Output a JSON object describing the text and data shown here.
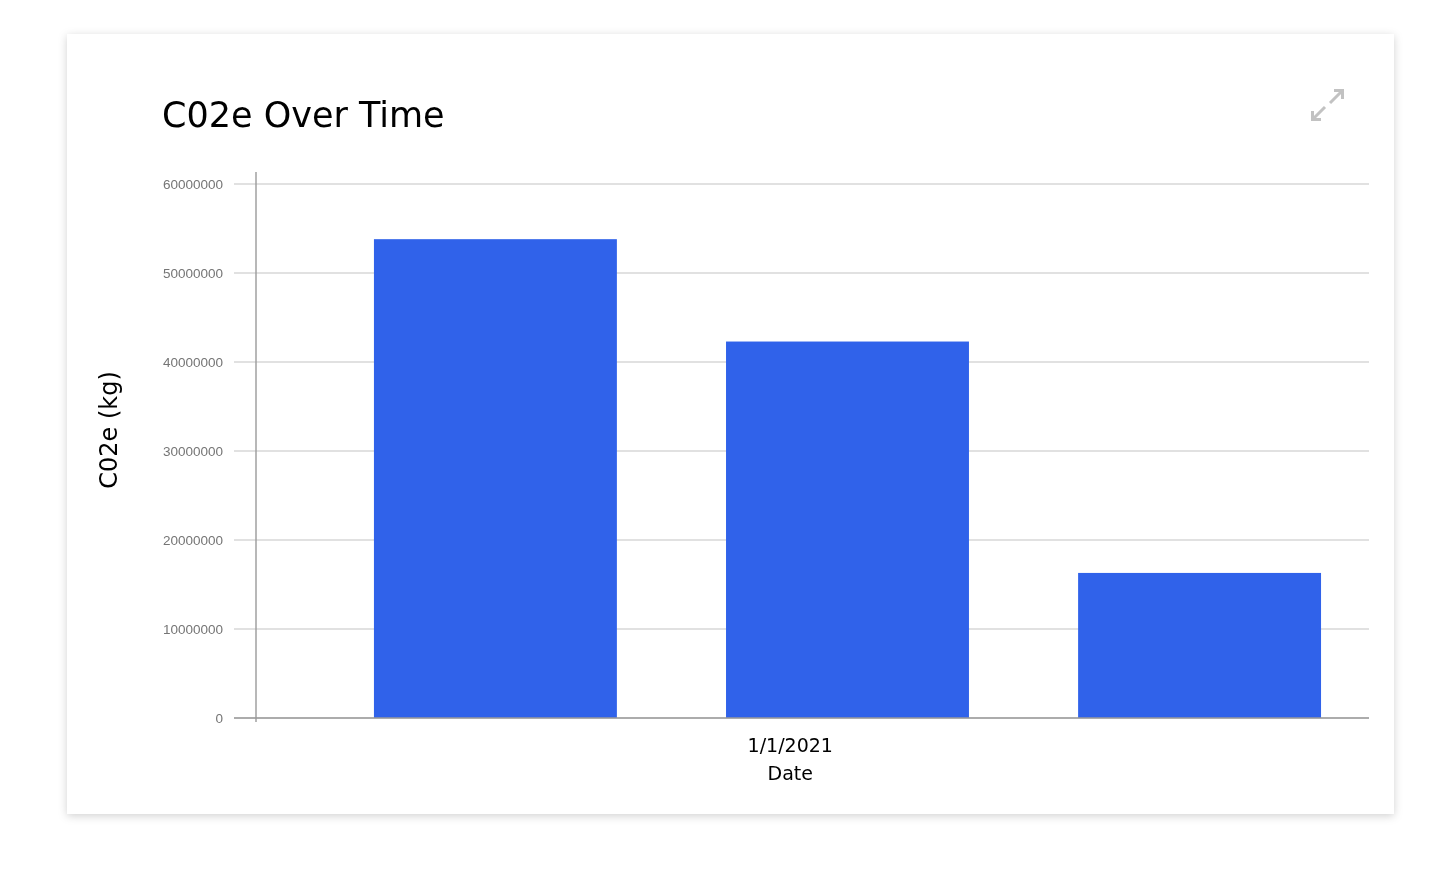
{
  "chart_data": {
    "type": "bar",
    "title": "C02e Over Time",
    "xlabel": "Date",
    "ylabel": "C02e (kg)",
    "categories": [
      null,
      null,
      null
    ],
    "values": [
      53800000,
      42300000,
      16300000
    ],
    "color": "#3062ea",
    "ylim": [
      0,
      60000000
    ],
    "yticks": [
      0,
      10000000,
      20000000,
      30000000,
      40000000,
      50000000,
      60000000
    ],
    "grid": "y",
    "annotations": [
      "1/1/2021"
    ]
  }
}
